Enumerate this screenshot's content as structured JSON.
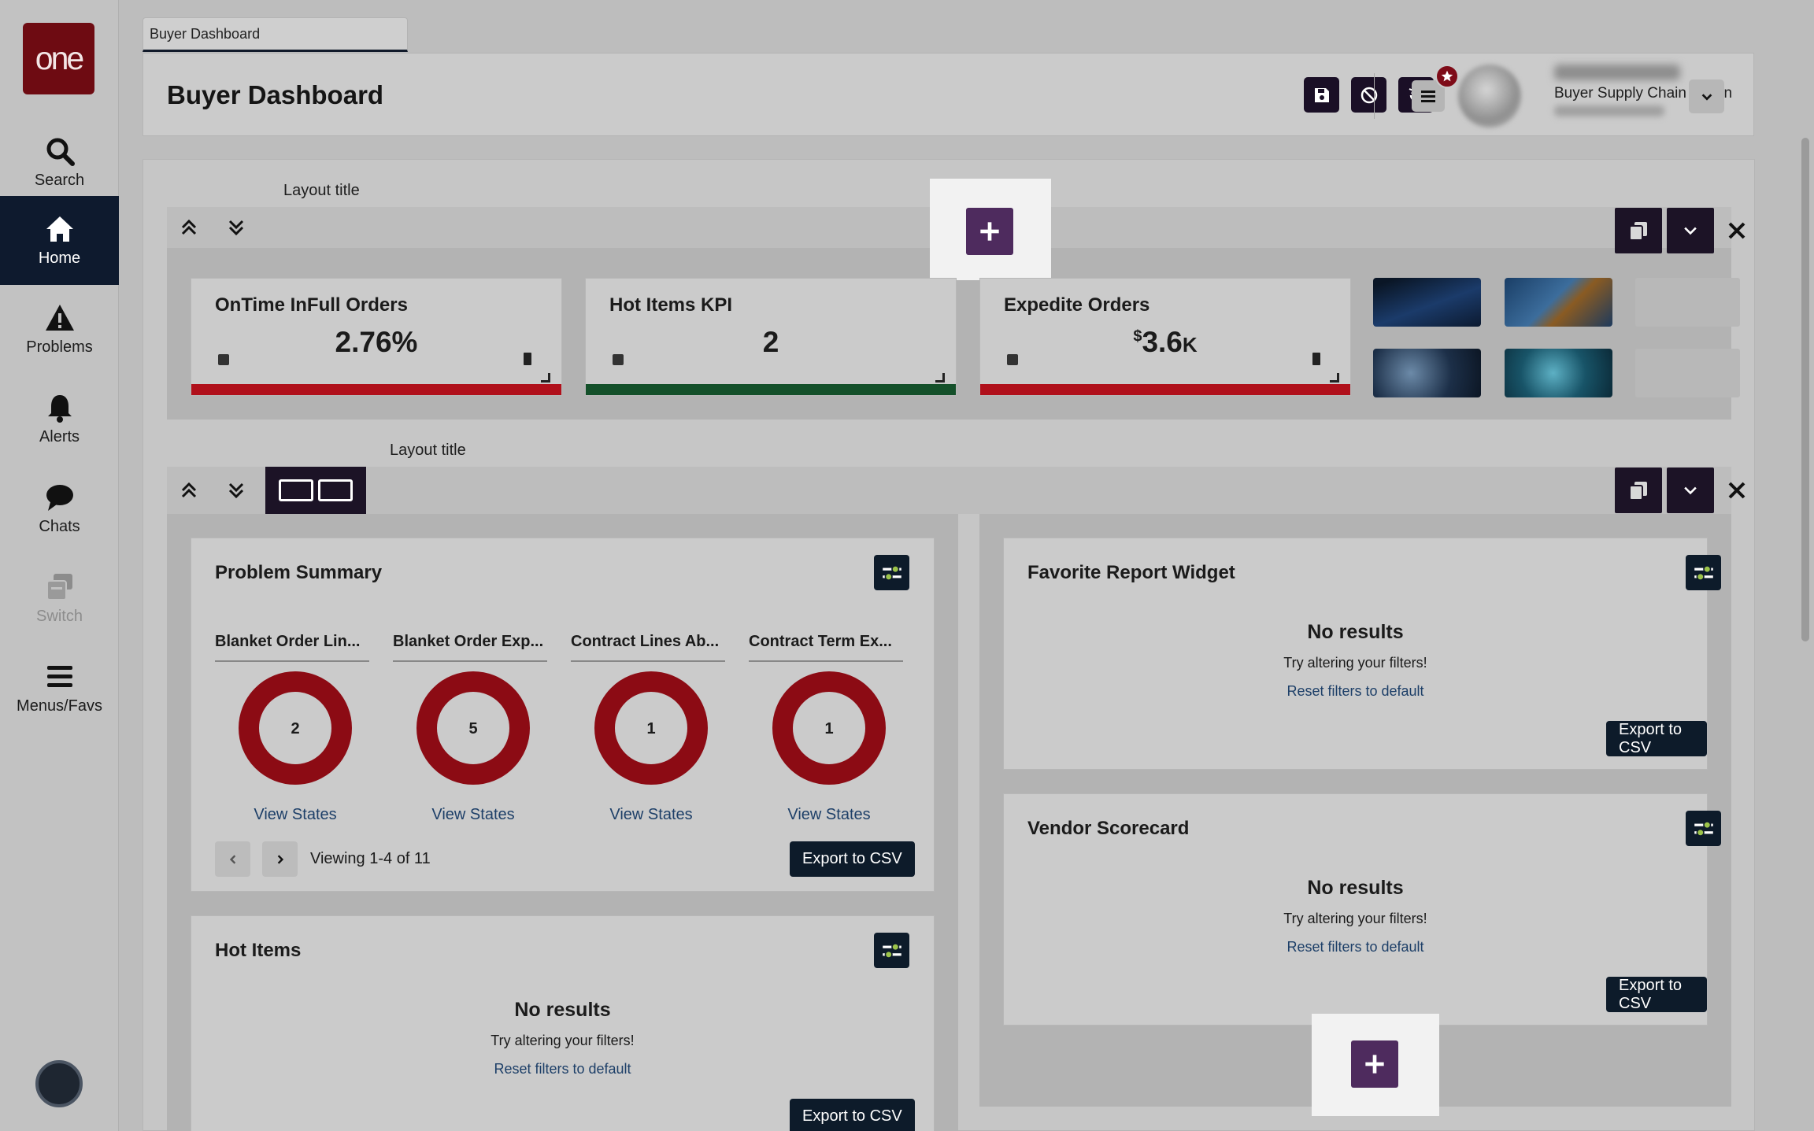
{
  "sidebar": {
    "logo": "one",
    "items": [
      {
        "label": "Search",
        "icon": "search-icon"
      },
      {
        "label": "Home",
        "icon": "home-icon"
      },
      {
        "label": "Problems",
        "icon": "warning-icon"
      },
      {
        "label": "Alerts",
        "icon": "bell-icon"
      },
      {
        "label": "Chats",
        "icon": "chat-icon"
      },
      {
        "label": "Switch",
        "icon": "switch-icon"
      },
      {
        "label": "Menus/Favs",
        "icon": "menu-icon"
      }
    ]
  },
  "tab": {
    "label": "Buyer Dashboard"
  },
  "header": {
    "title": "Buyer Dashboard",
    "user_role": "Buyer Supply Chain Admin"
  },
  "layout1": {
    "title_label": "Layout title",
    "title_value": "",
    "kpis": [
      {
        "title": "OnTime InFull Orders",
        "value": "2.76%",
        "bar_color": "#b0101b"
      },
      {
        "title": "Hot Items KPI",
        "value": "2",
        "bar_color": "#14502a"
      },
      {
        "title": "Expedite Orders",
        "value_prefix": "$",
        "value": "3.6",
        "value_suffix": "K",
        "bar_color": "#b0101b"
      }
    ]
  },
  "layout2": {
    "title_label": "Layout title",
    "title_value": "",
    "problem_summary": {
      "title": "Problem Summary",
      "columns": [
        {
          "label": "Blanket Order Lin...",
          "count": "2",
          "link": "View States"
        },
        {
          "label": "Blanket Order Exp...",
          "count": "5",
          "link": "View States"
        },
        {
          "label": "Contract Lines Ab...",
          "count": "1",
          "link": "View States"
        },
        {
          "label": "Contract Term Ex...",
          "count": "1",
          "link": "View States"
        }
      ],
      "pager_text": "Viewing 1-4 of 11",
      "export": "Export to CSV"
    },
    "hot_items": {
      "title": "Hot Items",
      "no_results": "No results",
      "hint": "Try altering your filters!",
      "reset": "Reset filters to default",
      "export": "Export to CSV"
    },
    "favorite_report": {
      "title": "Favorite Report Widget",
      "no_results": "No results",
      "hint": "Try altering your filters!",
      "reset": "Reset filters to default",
      "export": "Export to CSV"
    },
    "vendor_scorecard": {
      "title": "Vendor Scorecard",
      "no_results": "No results",
      "hint": "Try altering your filters!",
      "reset": "Reset filters to default",
      "export": "Export to CSV"
    }
  },
  "colors": {
    "accent_dark": "#0d1b2a",
    "add_button": "#4e2b5e",
    "alert_red": "#b0101b",
    "link_blue": "#1d3f68"
  }
}
